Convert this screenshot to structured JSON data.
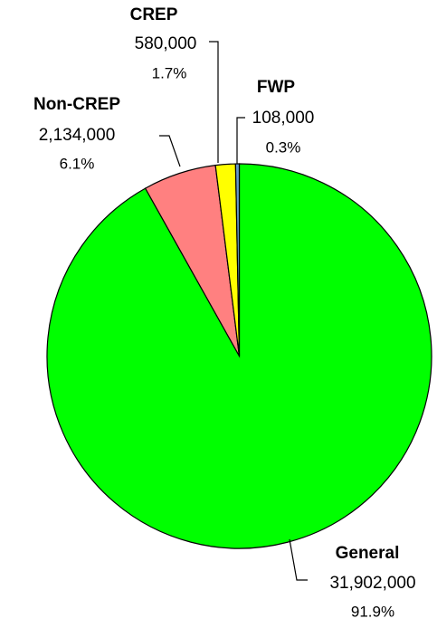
{
  "chart_data": {
    "type": "pie",
    "categories": [
      "General",
      "Non-CREP",
      "CREP",
      "FWP"
    ],
    "values": [
      31902000,
      2134000,
      580000,
      108000
    ],
    "value_labels": [
      "31,902,000",
      "2,134,000",
      "580,000",
      "108,000"
    ],
    "percent_labels": [
      "91.9%",
      "6.1%",
      "1.7%",
      "0.3%"
    ],
    "colors": [
      "#00ff00",
      "#ff8080",
      "#ffff00",
      "#6699cc"
    ]
  }
}
